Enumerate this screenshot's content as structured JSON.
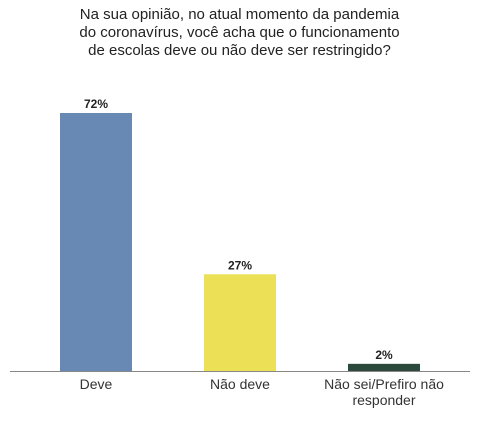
{
  "chart_data": {
    "type": "bar",
    "title_lines": [
      "Na sua opinião, no atual momento da pandemia",
      "do coronavírus, você acha que o funcionamento",
      "de escolas deve ou não deve ser restringido?"
    ],
    "categories": [
      [
        "Deve"
      ],
      [
        "Não deve"
      ],
      [
        "Não sei/Prefiro não",
        "responder"
      ]
    ],
    "values": [
      72,
      27,
      2
    ],
    "data_labels": [
      "72%",
      "27%",
      "2%"
    ],
    "colors": [
      "#6889b4",
      "#ece156",
      "#2b4a3c"
    ],
    "axis_color": "#888888",
    "ylim": [
      0,
      80
    ],
    "xlabel": "",
    "ylabel": "",
    "grid": false,
    "legend": "none"
  }
}
